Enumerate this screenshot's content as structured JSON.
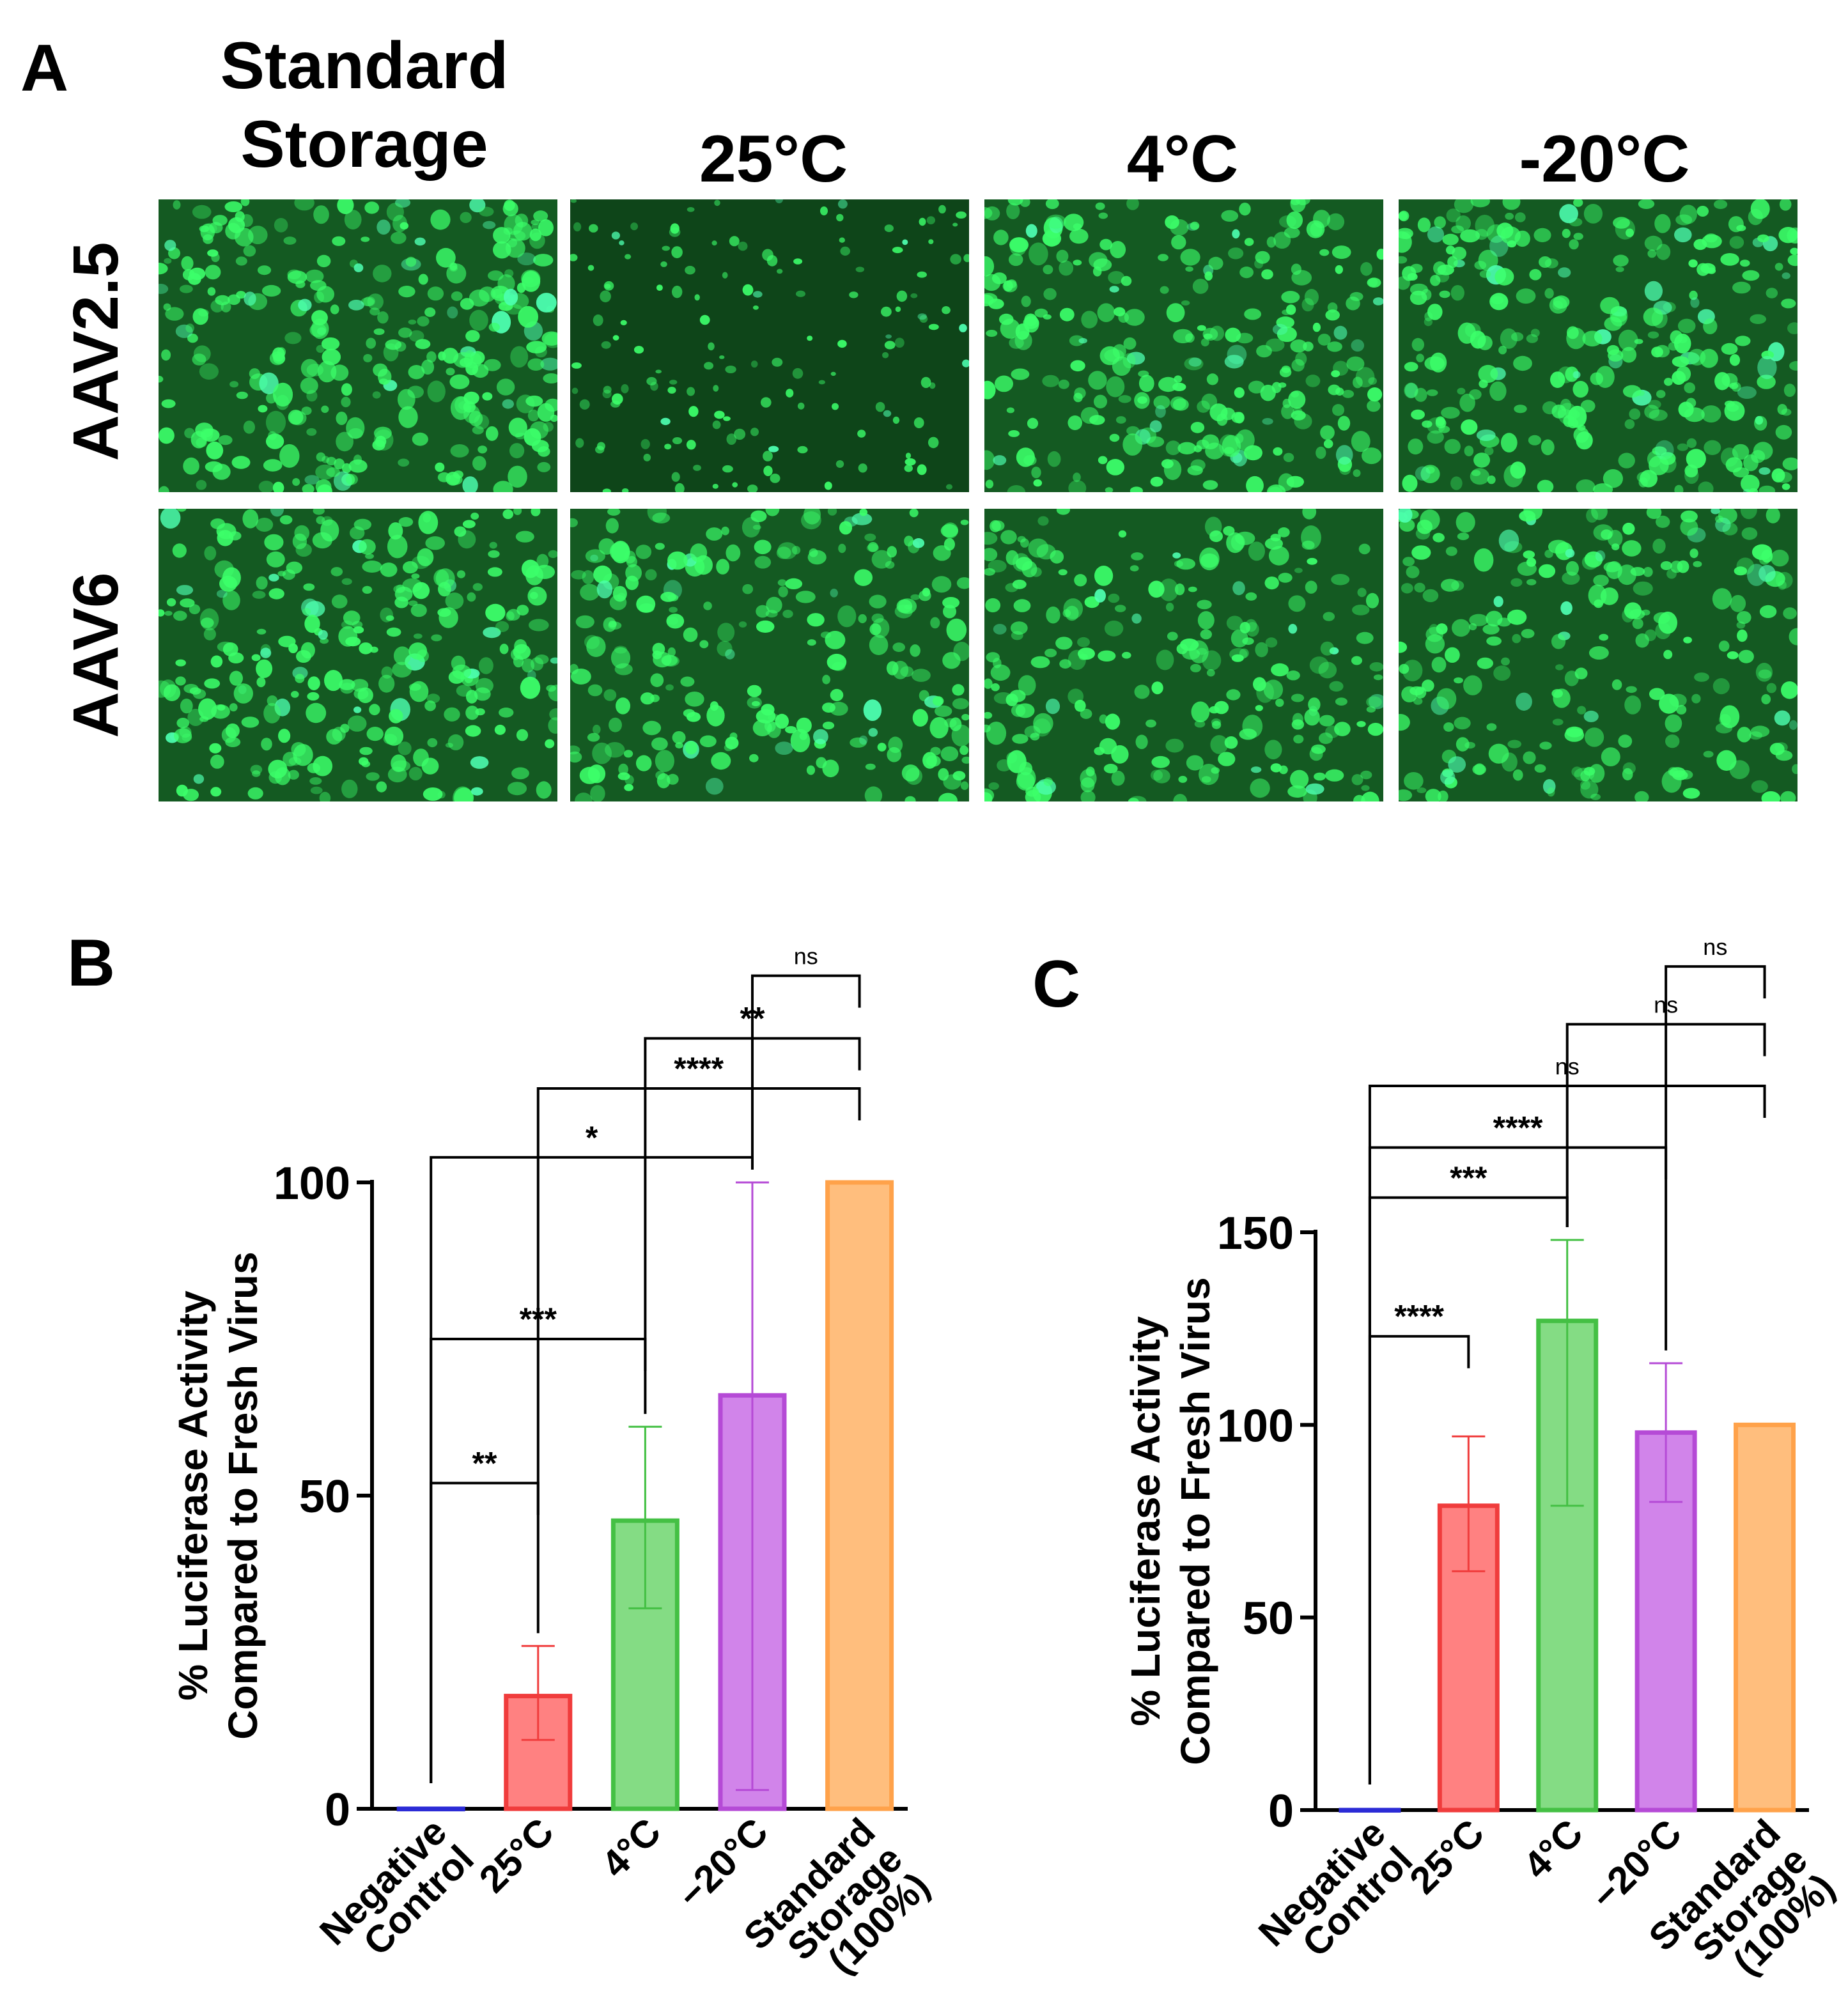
{
  "panel_a": {
    "letter": "A",
    "columns": [
      "Standard\nStorage",
      "25°C",
      "4°C",
      "-20°C"
    ],
    "rows": [
      "AAV2.5",
      "AAV6"
    ],
    "image_brightness": [
      [
        1.0,
        0.35,
        0.85,
        0.95
      ],
      [
        0.9,
        0.75,
        0.7,
        0.7
      ]
    ],
    "colors": {
      "cell": "#3cff6a",
      "background": "#0a3a12"
    }
  },
  "chart_data": [
    {
      "panel": "B",
      "type": "bar",
      "ylabel": [
        "% Luciferase Activity",
        "Compared to Fresh Virus"
      ],
      "ylim": [
        0,
        100
      ],
      "yticks": [
        0,
        50,
        100
      ],
      "categories": [
        "Negative\nControl",
        "25°C",
        "4°C",
        "−20°C",
        "Standard\nStorage\n(100%)"
      ],
      "values": [
        0,
        18,
        46,
        66,
        100
      ],
      "error_low": [
        0,
        11,
        32,
        3,
        100
      ],
      "error_high": [
        0,
        26,
        61,
        100,
        100
      ],
      "colors": [
        "#2b2bd6",
        "#ff6b6b",
        "#6fd66f",
        "#c96fe6",
        "#ffb366"
      ],
      "edge_colors": [
        "#2b2bd6",
        "#f03c3c",
        "#44c044",
        "#b54ad6",
        "#ffa24a"
      ],
      "comparisons": [
        {
          "from": 0,
          "to": 1,
          "label": "**",
          "level": 52
        },
        {
          "from": 0,
          "to": 2,
          "label": "***",
          "level": 75
        },
        {
          "from": 0,
          "to": 3,
          "label": "*",
          "level": 104
        },
        {
          "from": 1,
          "to": 4,
          "label": "****",
          "level": 115
        },
        {
          "from": 2,
          "to": 4,
          "label": "**",
          "level": 123
        },
        {
          "from": 3,
          "to": 4,
          "label": "ns",
          "level": 133
        }
      ]
    },
    {
      "panel": "C",
      "type": "bar",
      "ylabel": [
        "% Luciferase Activity",
        "Compared to Fresh Virus"
      ],
      "ylim": [
        0,
        150
      ],
      "yticks": [
        0,
        50,
        100,
        150
      ],
      "categories": [
        "Negative\nControl",
        "25°C",
        "4°C",
        "−20°C",
        "Standard\nStorage\n(100%)"
      ],
      "values": [
        0,
        79,
        127,
        98,
        100
      ],
      "error_low": [
        0,
        62,
        79,
        80,
        100
      ],
      "error_high": [
        0,
        97,
        148,
        116,
        100
      ],
      "colors": [
        "#2b2bd6",
        "#ff6b6b",
        "#6fd66f",
        "#c96fe6",
        "#ffb366"
      ],
      "edge_colors": [
        "#2b2bd6",
        "#f03c3c",
        "#44c044",
        "#b54ad6",
        "#ffa24a"
      ],
      "comparisons": [
        {
          "from": 0,
          "to": 1,
          "label": "****",
          "level": 123
        },
        {
          "from": 0,
          "to": 2,
          "label": "***",
          "level": 159
        },
        {
          "from": 0,
          "to": 3,
          "label": "****",
          "level": 172
        },
        {
          "from": 0,
          "to": 4,
          "label": "ns",
          "level": 188
        },
        {
          "from": 2,
          "to": 4,
          "label": "ns",
          "level": 204
        },
        {
          "from": 3,
          "to": 4,
          "label": "ns",
          "level": 219
        }
      ]
    }
  ]
}
